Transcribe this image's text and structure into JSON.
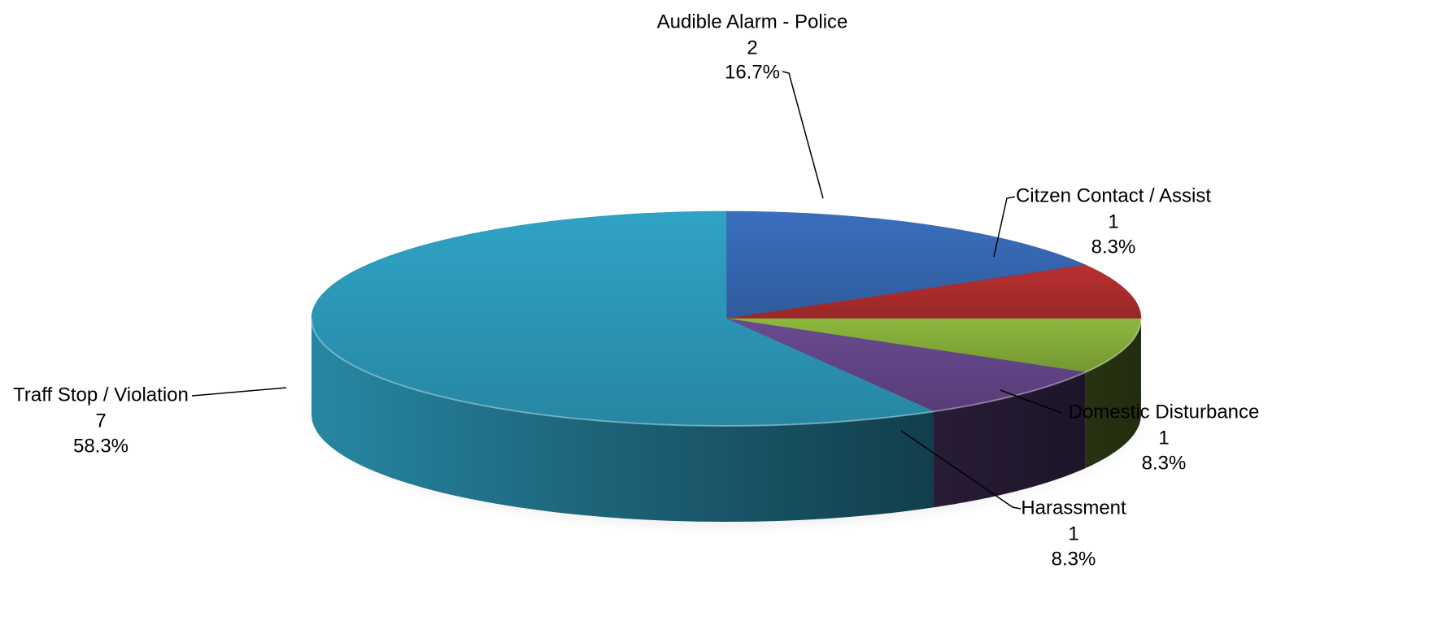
{
  "chart_data": {
    "type": "pie",
    "style": "3d",
    "title": "",
    "slices": [
      {
        "label": "Audible Alarm - Police",
        "value": 2,
        "percent": "16.7%",
        "color": "#3A6FBE"
      },
      {
        "label": "Citzen Contact / Assist",
        "value": 1,
        "percent": "8.3%",
        "color": "#B93030"
      },
      {
        "label": "Domestic Disturbance",
        "value": 1,
        "percent": "8.3%",
        "color": "#8DB83E"
      },
      {
        "label": "Harassment",
        "value": 1,
        "percent": "8.3%",
        "color": "#6A4A91"
      },
      {
        "label": "Traff Stop / Violation",
        "value": 7,
        "percent": "58.3%",
        "color": "#2FA3C6"
      }
    ]
  }
}
